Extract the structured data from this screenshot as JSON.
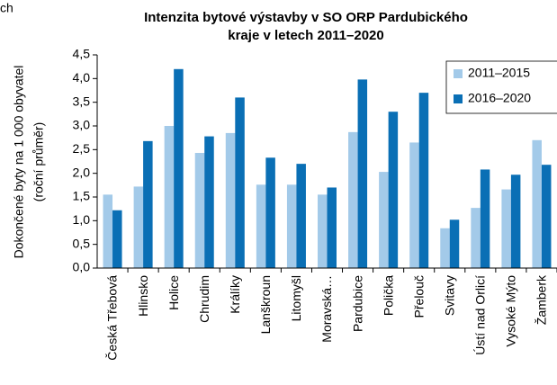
{
  "chart_data": {
    "type": "bar",
    "annotation": "ch",
    "title": [
      "Intenzita bytové výstavby v SO ORP Pardubického",
      "kraje v letech 2011–2020"
    ],
    "y_label": [
      "Dokončené byty na 1 000 obyvatel",
      "(roční průměr)"
    ],
    "categories": [
      "Česká Třebová",
      "Hlinsko",
      "Holice",
      "Chrudim",
      "Králíky",
      "Lanškroun",
      "Litomyšl",
      "Moravská…",
      "Pardubice",
      "Polička",
      "Přelouč",
      "Svitavy",
      "Ústí nad Orlicí",
      "Vysoké Mýto",
      "Žamberk"
    ],
    "series": [
      {
        "name": "2011–2015",
        "color": "#a3cae9",
        "values": [
          1.55,
          1.72,
          3.0,
          2.43,
          2.85,
          1.76,
          1.76,
          1.55,
          2.87,
          2.03,
          2.65,
          0.84,
          1.27,
          1.66,
          2.7
        ]
      },
      {
        "name": "2016–2020",
        "color": "#0a6fb5",
        "values": [
          1.22,
          2.68,
          4.2,
          2.78,
          3.6,
          2.33,
          2.2,
          1.7,
          3.98,
          3.3,
          3.7,
          1.02,
          2.08,
          1.97,
          2.18
        ]
      }
    ],
    "ylim": [
      0,
      4.5
    ],
    "yticks": [
      {
        "value": 0,
        "label": "0,0"
      },
      {
        "value": 0.5,
        "label": "0,5"
      },
      {
        "value": 1,
        "label": "1,0"
      },
      {
        "value": 1.5,
        "label": "1,5"
      },
      {
        "value": 2,
        "label": "2,0"
      },
      {
        "value": 2.5,
        "label": "2,5"
      },
      {
        "value": 3,
        "label": "3,0"
      },
      {
        "value": 3.5,
        "label": "3,5"
      },
      {
        "value": 4,
        "label": "4,0"
      },
      {
        "value": 4.5,
        "label": "4,5"
      }
    ],
    "grid": false,
    "legend": "top-right"
  }
}
